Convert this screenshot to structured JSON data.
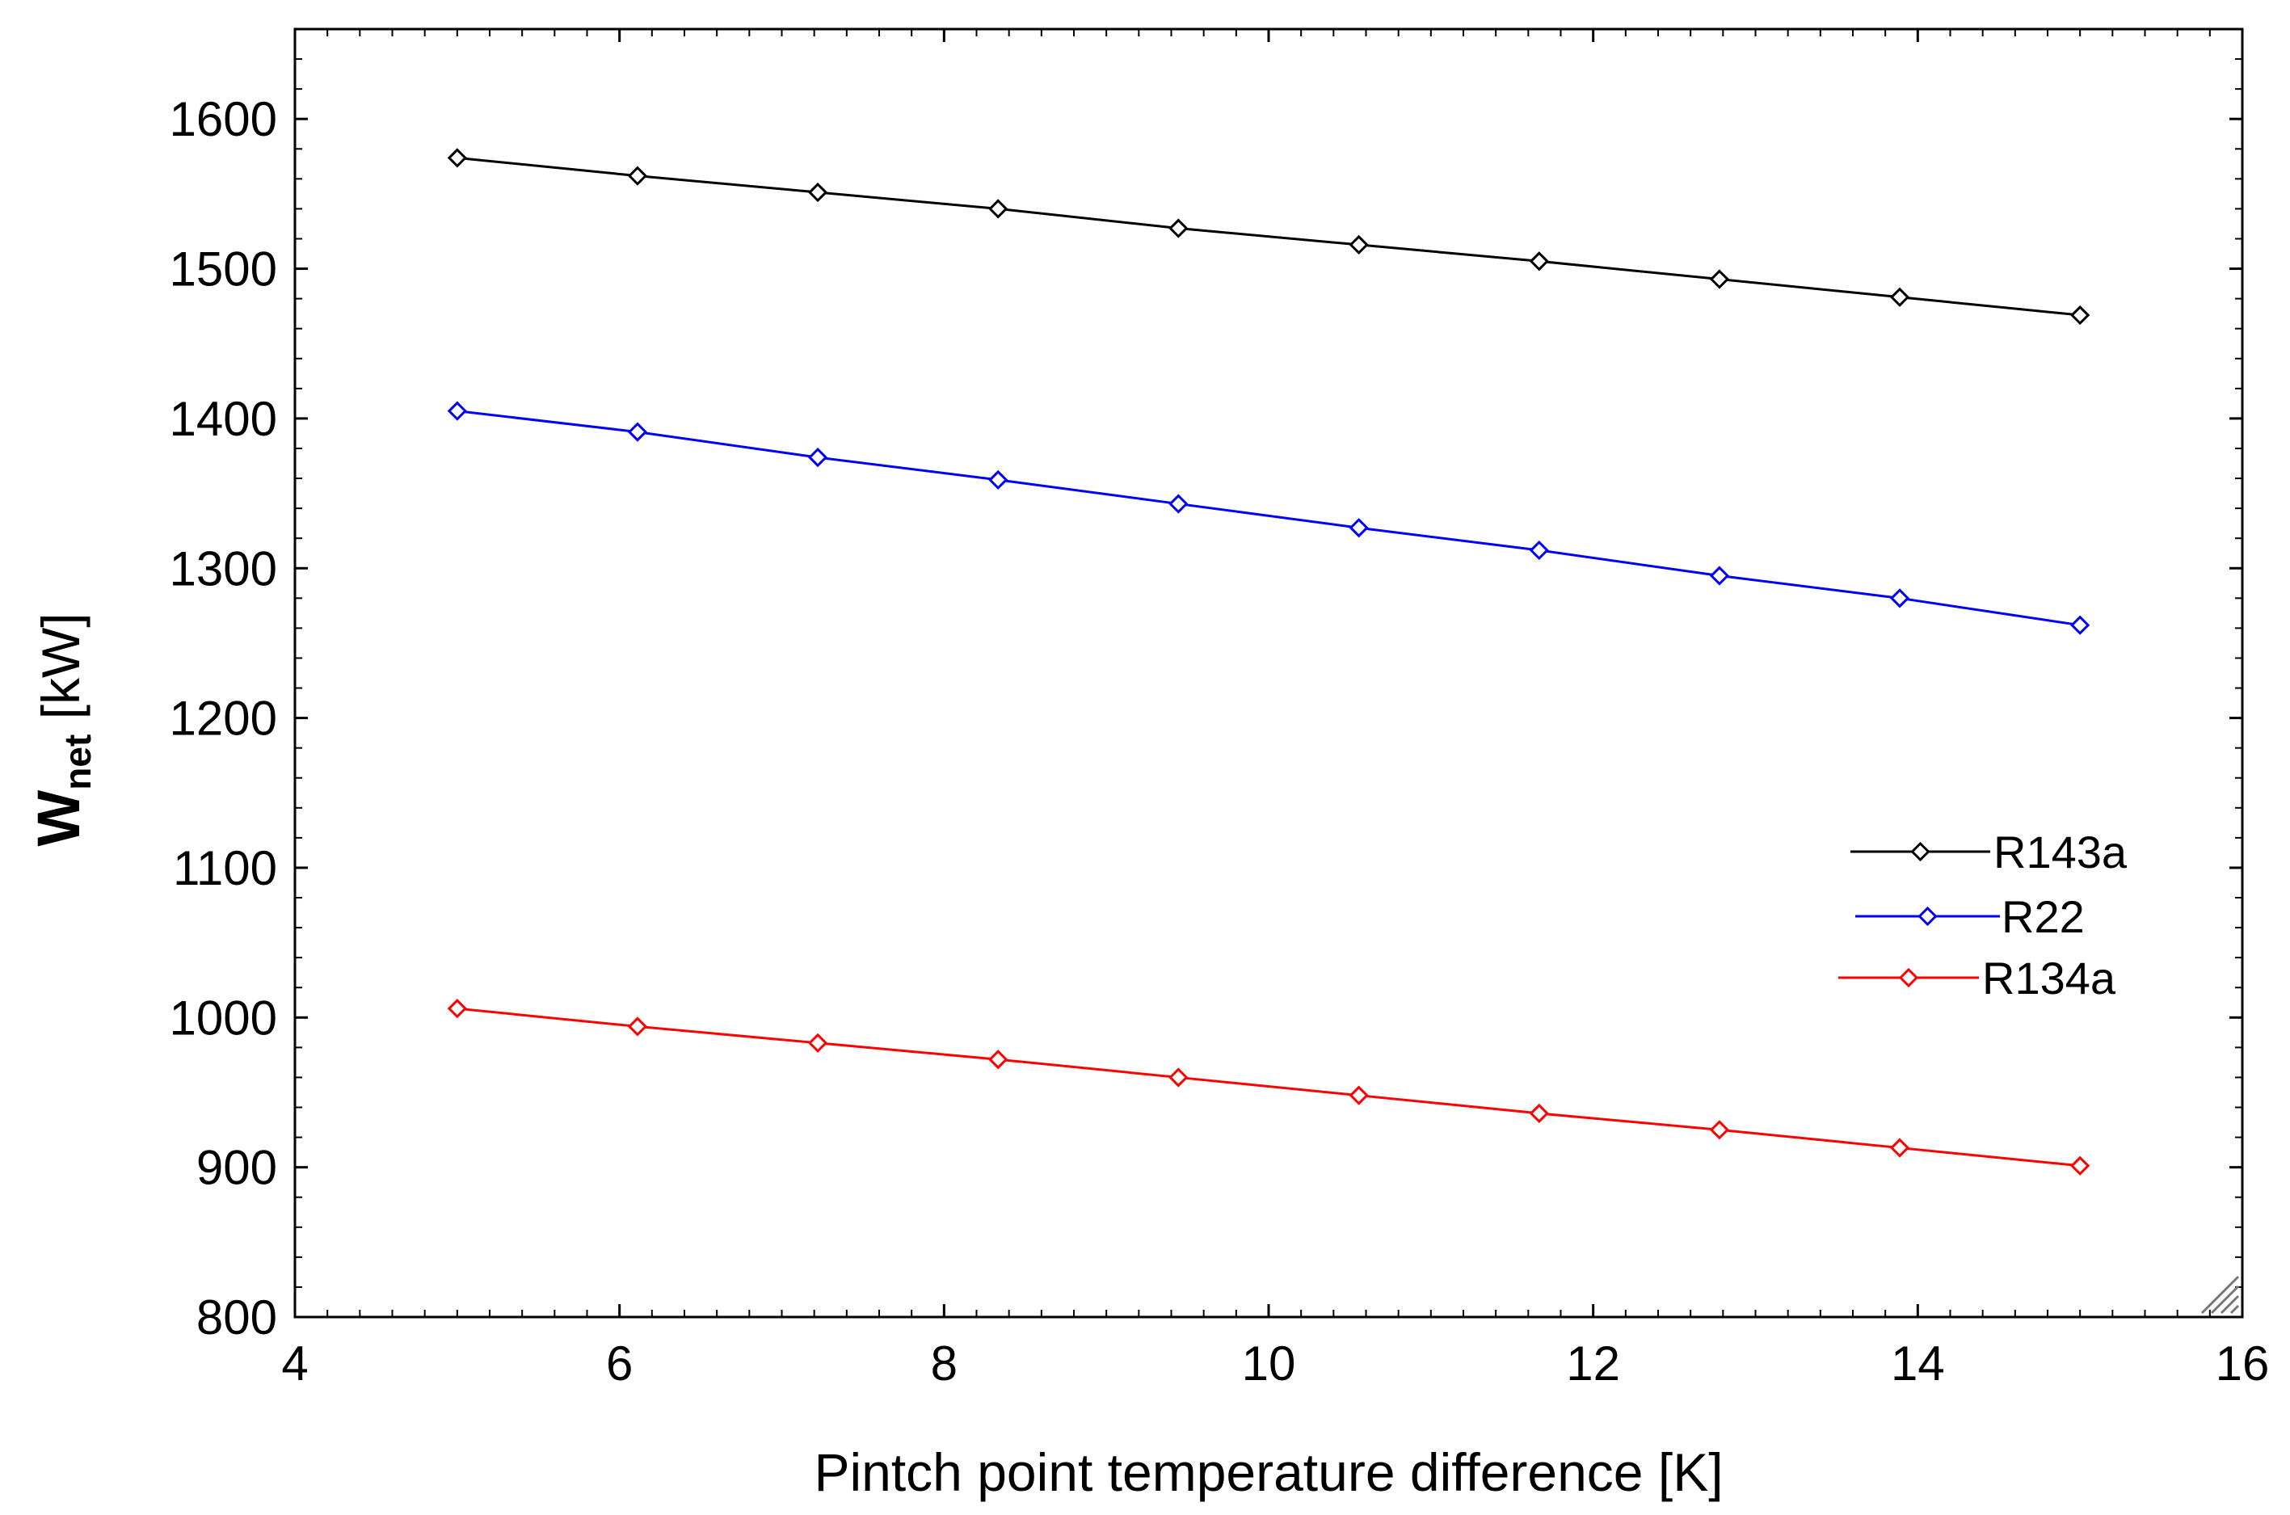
{
  "chart_data": {
    "type": "line",
    "title": "",
    "xlabel": "Pintch point temperature difference [K]",
    "ylabel": {
      "main": "W",
      "subscript": "net",
      "unit": " [kW]"
    },
    "xlim": [
      4,
      16
    ],
    "ylim": [
      800,
      1660
    ],
    "xticks": [
      4,
      6,
      8,
      10,
      12,
      14,
      16
    ],
    "yticks": [
      800,
      900,
      1000,
      1100,
      1200,
      1300,
      1400,
      1500,
      1600
    ],
    "grid": false,
    "legend_position": "right-middle",
    "x": [
      5,
      6.111,
      7.222,
      8.333,
      9.444,
      10.556,
      11.667,
      12.778,
      13.889,
      15
    ],
    "series": [
      {
        "name": "R143a",
        "color": "#000000",
        "marker": "diamond",
        "values": [
          1574,
          1562,
          1551,
          1540,
          1527,
          1516,
          1505,
          1493,
          1481,
          1469
        ]
      },
      {
        "name": "R22",
        "color": "#0000ff",
        "marker": "diamond",
        "values": [
          1405,
          1391,
          1374,
          1359,
          1343,
          1327,
          1312,
          1295,
          1280,
          1262
        ]
      },
      {
        "name": "R134a",
        "color": "#ff0000",
        "marker": "diamond",
        "values": [
          1006,
          994,
          983,
          972,
          960,
          948,
          936,
          925,
          913,
          901
        ]
      }
    ]
  }
}
